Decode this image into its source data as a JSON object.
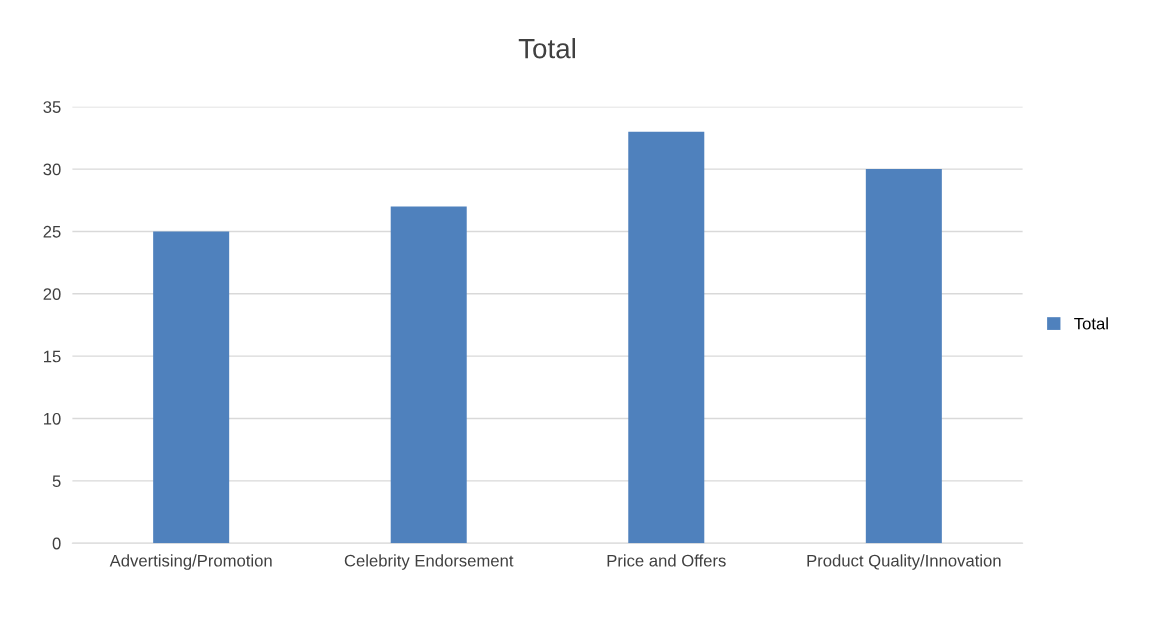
{
  "chart_data": {
    "type": "bar",
    "title": "Total",
    "categories": [
      "Advertising/Promotion",
      "Celebrity Endorsement",
      "Price and Offers",
      "Product Quality/Innovation"
    ],
    "series": [
      {
        "name": "Total",
        "color": "#4f81bd",
        "values": [
          25,
          27,
          33,
          30
        ]
      }
    ],
    "ylim": [
      0,
      35
    ],
    "yticks": [
      0,
      5,
      10,
      15,
      20,
      25,
      30,
      35
    ],
    "grid": "y",
    "legend": "right"
  }
}
